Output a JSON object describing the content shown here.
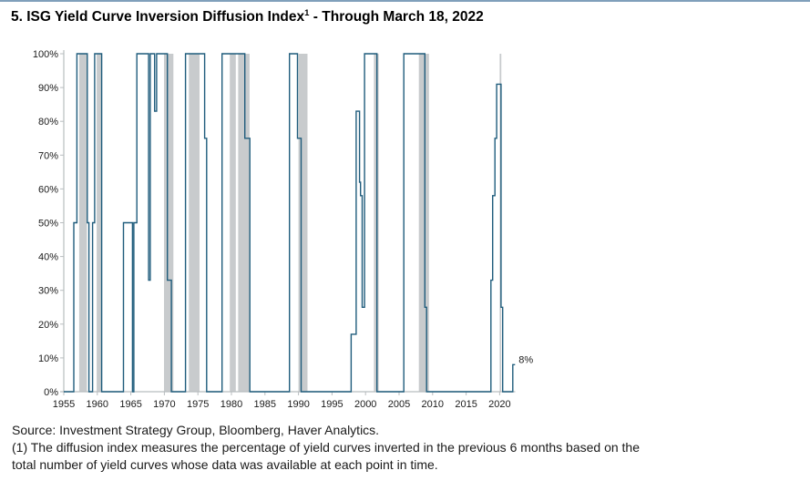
{
  "title": {
    "part1": "5. ISG Yield Curve Inversion Diffusion Index",
    "sup": "1",
    "part2": " - Through March 18, 2022"
  },
  "chart_data": {
    "type": "line",
    "step": "after",
    "title": "5. ISG Yield Curve Inversion Diffusion Index (1) - Through March 18, 2022",
    "xlabel": "",
    "ylabel": "",
    "x_range": [
      1955,
      2022.3
    ],
    "y_range_pct": [
      0,
      100
    ],
    "x_ticks": [
      1955,
      1960,
      1965,
      1970,
      1975,
      1980,
      1985,
      1990,
      1995,
      2000,
      2005,
      2010,
      2015,
      2020
    ],
    "y_ticks_pct": [
      0,
      10,
      20,
      30,
      40,
      50,
      60,
      70,
      80,
      90,
      100
    ],
    "y_tick_suffix": "%",
    "grid": false,
    "legend": "none",
    "series": [
      {
        "name": "Percentage of yield curves inverted in previous 6 months",
        "end_year": 2022.3,
        "points": [
          [
            1955.0,
            0
          ],
          [
            1956.5,
            50
          ],
          [
            1956.95,
            100
          ],
          [
            1958.5,
            50
          ],
          [
            1958.75,
            0
          ],
          [
            1959.3,
            50
          ],
          [
            1959.6,
            100
          ],
          [
            1960.65,
            0
          ],
          [
            1963.9,
            50
          ],
          [
            1965.25,
            0
          ],
          [
            1965.45,
            50
          ],
          [
            1965.9,
            100
          ],
          [
            1967.65,
            33
          ],
          [
            1967.9,
            100
          ],
          [
            1968.55,
            83
          ],
          [
            1968.85,
            100
          ],
          [
            1970.45,
            33
          ],
          [
            1971.05,
            0
          ],
          [
            1973.15,
            100
          ],
          [
            1976.0,
            75
          ],
          [
            1976.3,
            0
          ],
          [
            1978.6,
            100
          ],
          [
            1982.0,
            75
          ],
          [
            1982.75,
            0
          ],
          [
            1988.65,
            100
          ],
          [
            1989.85,
            75
          ],
          [
            1990.4,
            0
          ],
          [
            1997.85,
            17
          ],
          [
            1998.6,
            83
          ],
          [
            1999.1,
            62
          ],
          [
            1999.25,
            58
          ],
          [
            1999.5,
            25
          ],
          [
            1999.85,
            100
          ],
          [
            2001.7,
            0
          ],
          [
            2005.7,
            100
          ],
          [
            2008.85,
            25
          ],
          [
            2009.1,
            0
          ],
          [
            2018.7,
            33
          ],
          [
            2018.95,
            58
          ],
          [
            2019.3,
            75
          ],
          [
            2019.55,
            91
          ],
          [
            2020.2,
            25
          ],
          [
            2020.45,
            0
          ],
          [
            2021.95,
            8
          ]
        ]
      }
    ],
    "recession_bands": [
      [
        1957.3,
        1958.45
      ],
      [
        1959.9,
        1960.6
      ],
      [
        1969.95,
        1971.35
      ],
      [
        1973.65,
        1975.25
      ],
      [
        1979.75,
        1980.65
      ],
      [
        1981.0,
        1982.7
      ],
      [
        1990.0,
        1991.35
      ],
      [
        2001.25,
        2001.95
      ],
      [
        2007.95,
        2009.45
      ],
      [
        2020.0,
        2020.25
      ]
    ],
    "end_label": {
      "text": "8%",
      "value_pct": 8
    }
  },
  "footer": {
    "source": "Source: Investment Strategy Group, Bloomberg, Haver Analytics.",
    "note_line1": "(1) The diffusion index measures the percentage of yield curves inverted in the previous 6 months based on the",
    "note_line2": "total number of yield curves whose data was available at each point in time."
  },
  "colors": {
    "line": "#1F5C7C",
    "recession_band": "#C8CBCD",
    "axis": "#B8BDBF",
    "tick_text": "#1A1A1A",
    "title_text": "#000000",
    "footer_text": "#1A1A1A",
    "top_rule": "#5580A4"
  }
}
